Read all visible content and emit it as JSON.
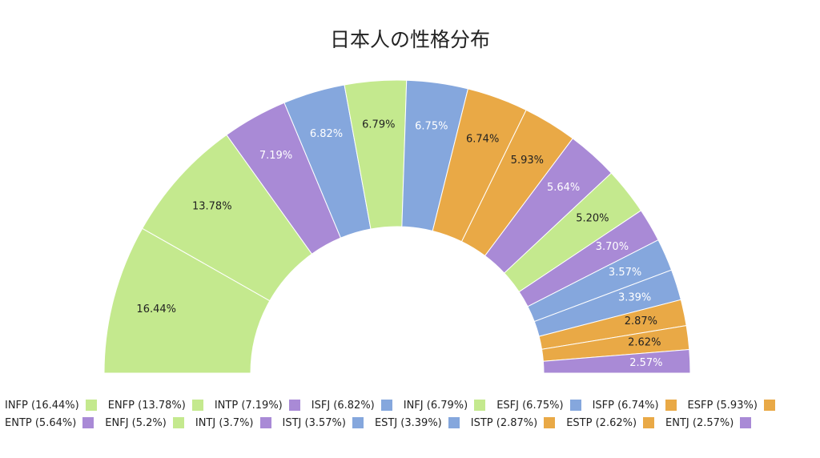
{
  "chart_data": {
    "type": "pie",
    "title": "日本人の性格分布",
    "legend_position": "bottom",
    "slices": [
      {
        "label": "INFP",
        "value": 16.44,
        "data_label": "16.44%",
        "legend_label": "INFP (16.44%)",
        "color": "#c4e98e",
        "label_color": "#222222"
      },
      {
        "label": "ENFP",
        "value": 13.78,
        "data_label": "13.78%",
        "legend_label": "ENFP (13.78%)",
        "color": "#c4e98e",
        "label_color": "#222222"
      },
      {
        "label": "INTP",
        "value": 7.19,
        "data_label": "7.19%",
        "legend_label": "INTP (7.19%)",
        "color": "#a98ad6",
        "label_color": "#ffffff"
      },
      {
        "label": "ISFJ",
        "value": 6.82,
        "data_label": "6.82%",
        "legend_label": "ISFJ (6.82%)",
        "color": "#85a7dd",
        "label_color": "#ffffff"
      },
      {
        "label": "INFJ",
        "value": 6.79,
        "data_label": "6.79%",
        "legend_label": "INFJ (6.79%)",
        "color": "#c4e98e",
        "label_color": "#222222"
      },
      {
        "label": "ESFJ",
        "value": 6.75,
        "data_label": "6.75%",
        "legend_label": "ESFJ (6.75%)",
        "color": "#85a7dd",
        "label_color": "#ffffff"
      },
      {
        "label": "ISFP",
        "value": 6.74,
        "data_label": "6.74%",
        "legend_label": "ISFP (6.74%)",
        "color": "#e9a946",
        "label_color": "#222222"
      },
      {
        "label": "ESFP",
        "value": 5.93,
        "data_label": "5.93%",
        "legend_label": "ESFP (5.93%)",
        "color": "#e9a946",
        "label_color": "#222222"
      },
      {
        "label": "ENTP",
        "value": 5.64,
        "data_label": "5.64%",
        "legend_label": "ENTP (5.64%)",
        "color": "#a98ad6",
        "label_color": "#ffffff"
      },
      {
        "label": "ENFJ",
        "value": 5.2,
        "data_label": "5.20%",
        "legend_label": "ENFJ (5.2%)",
        "color": "#c4e98e",
        "label_color": "#222222"
      },
      {
        "label": "INTJ",
        "value": 3.7,
        "data_label": "3.70%",
        "legend_label": "INTJ (3.7%)",
        "color": "#a98ad6",
        "label_color": "#ffffff"
      },
      {
        "label": "ISTJ",
        "value": 3.57,
        "data_label": "3.57%",
        "legend_label": "ISTJ (3.57%)",
        "color": "#85a7dd",
        "label_color": "#ffffff"
      },
      {
        "label": "ESTJ",
        "value": 3.39,
        "data_label": "3.39%",
        "legend_label": "ESTJ (3.39%)",
        "color": "#85a7dd",
        "label_color": "#ffffff"
      },
      {
        "label": "ISTP",
        "value": 2.87,
        "data_label": "2.87%",
        "legend_label": "ISTP (2.87%)",
        "color": "#e9a946",
        "label_color": "#222222"
      },
      {
        "label": "ESTP",
        "value": 2.62,
        "data_label": "2.62%",
        "legend_label": "ESTP (2.62%)",
        "color": "#e9a946",
        "label_color": "#222222"
      },
      {
        "label": "ENTJ",
        "value": 2.57,
        "data_label": "2.57%",
        "legend_label": "ENTJ (2.57%)",
        "color": "#a98ad6",
        "label_color": "#ffffff"
      }
    ]
  }
}
